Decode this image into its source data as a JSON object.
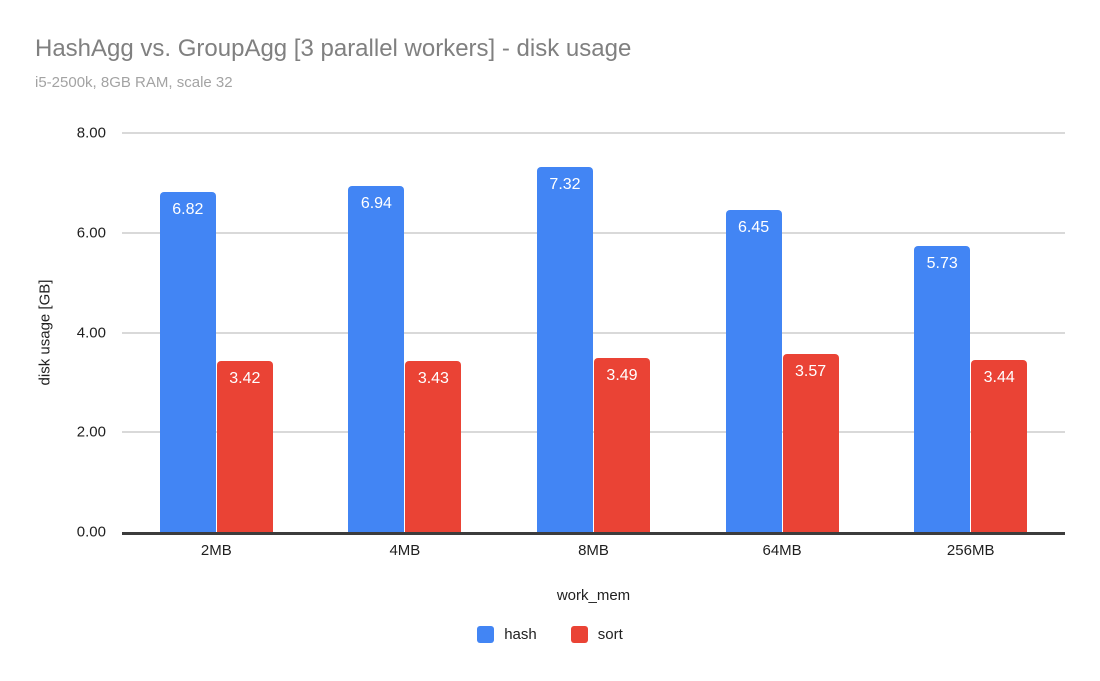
{
  "chart_data": {
    "type": "bar",
    "title": "HashAgg vs. GroupAgg [3 parallel workers] - disk usage",
    "subtitle": "i5-2500k, 8GB RAM, scale 32",
    "xlabel": "work_mem",
    "ylabel": "disk usage [GB]",
    "categories": [
      "2MB",
      "4MB",
      "8MB",
      "64MB",
      "256MB"
    ],
    "series": [
      {
        "name": "hash",
        "color": "#4285F4",
        "values": [
          6.82,
          6.94,
          7.32,
          6.45,
          5.73
        ]
      },
      {
        "name": "sort",
        "color": "#EA4335",
        "values": [
          3.42,
          3.43,
          3.49,
          3.57,
          3.44
        ]
      }
    ],
    "ylim": [
      0,
      8
    ],
    "yticks": [
      0,
      2,
      4,
      6,
      8
    ],
    "ytick_labels": [
      "0.00",
      "2.00",
      "4.00",
      "6.00",
      "8.00"
    ],
    "grid": true,
    "legend_position": "bottom",
    "value_labels": "inside-top, white, 2 decimals",
    "colors": {
      "hash": "#4285F4",
      "sort": "#EA4335",
      "title_text": "#808080",
      "subtitle_text": "#a3a3a3",
      "gridline": "#d9d9d9",
      "axis_line": "#3c3c3c",
      "tick_text": "#1f1f1f"
    }
  }
}
